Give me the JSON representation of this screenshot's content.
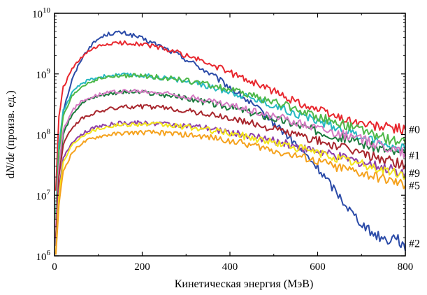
{
  "chart_data": {
    "type": "line",
    "xlabel": "Кинетическая энергия (МэВ)",
    "ylabel_parts": {
      "d1": "d",
      "N": "N",
      "slash": "/d",
      "eps": "ε",
      "rest": " (произв. ед.)"
    },
    "xlim": [
      0,
      800
    ],
    "ylim": [
      1000000,
      10000000000
    ],
    "yscale": "log",
    "x_ticks": [
      0,
      200,
      400,
      600,
      800
    ],
    "x_tick_labels": [
      "0",
      "200",
      "400",
      "600",
      "800"
    ],
    "y_ticks": [
      {
        "value": 1000000,
        "base": "10",
        "exp": "6"
      },
      {
        "value": 10000000,
        "base": "10",
        "exp": "7"
      },
      {
        "value": 100000000,
        "base": "10",
        "exp": "8"
      },
      {
        "value": 1000000000,
        "base": "10",
        "exp": "9"
      },
      {
        "value": 10000000000,
        "base": "10",
        "exp": "10"
      }
    ],
    "grid": false,
    "series": [
      {
        "label": "#2",
        "color": "#2b4ba8",
        "points": [
          [
            3,
            1500000.0
          ],
          [
            10,
            60000000.0
          ],
          [
            20,
            250000000.0
          ],
          [
            40,
            800000000.0
          ],
          [
            60,
            1700000000.0
          ],
          [
            80,
            2800000000.0
          ],
          [
            100,
            3800000000.0
          ],
          [
            120,
            4500000000.0
          ],
          [
            140,
            4800000000.0
          ],
          [
            160,
            4700000000.0
          ],
          [
            180,
            4300000000.0
          ],
          [
            200,
            3800000000.0
          ],
          [
            240,
            2900000000.0
          ],
          [
            280,
            2100000000.0
          ],
          [
            320,
            1450000000.0
          ],
          [
            360,
            950000000.0
          ],
          [
            400,
            600000000.0
          ],
          [
            440,
            360000000.0
          ],
          [
            480,
            210000000.0
          ],
          [
            520,
            115000000.0
          ],
          [
            560,
            58000000.0
          ],
          [
            600,
            28000000.0
          ],
          [
            640,
            12000000.0
          ],
          [
            680,
            5000000.0
          ],
          [
            720,
            2500000.0
          ],
          [
            760,
            1800000.0
          ],
          [
            780,
            2200000.0
          ],
          [
            800,
            1200000.0
          ]
        ]
      },
      {
        "label": "",
        "color": "#e8262d",
        "points": [
          [
            3,
            12000000.0
          ],
          [
            10,
            200000000.0
          ],
          [
            20,
            600000000.0
          ],
          [
            40,
            1200000000.0
          ],
          [
            60,
            1800000000.0
          ],
          [
            80,
            2400000000.0
          ],
          [
            100,
            2800000000.0
          ],
          [
            120,
            3100000000.0
          ],
          [
            140,
            3200000000.0
          ],
          [
            160,
            3250000000.0
          ],
          [
            180,
            3200000000.0
          ],
          [
            200,
            3100000000.0
          ],
          [
            240,
            2700000000.0
          ],
          [
            280,
            2250000000.0
          ],
          [
            320,
            1800000000.0
          ],
          [
            360,
            1400000000.0
          ],
          [
            400,
            1050000000.0
          ],
          [
            440,
            800000000.0
          ],
          [
            480,
            600000000.0
          ],
          [
            520,
            440000000.0
          ],
          [
            560,
            330000000.0
          ],
          [
            600,
            260000000.0
          ],
          [
            640,
            200000000.0
          ],
          [
            680,
            165000000.0
          ],
          [
            720,
            140000000.0
          ],
          [
            760,
            130000000.0
          ],
          [
            800,
            120000000.0
          ]
        ]
      },
      {
        "label": "#0",
        "color": "#26b8c2",
        "points": [
          [
            3,
            5000000.0
          ],
          [
            10,
            70000000.0
          ],
          [
            20,
            250000000.0
          ],
          [
            40,
            480000000.0
          ],
          [
            60,
            680000000.0
          ],
          [
            80,
            800000000.0
          ],
          [
            100,
            880000000.0
          ],
          [
            120,
            930000000.0
          ],
          [
            140,
            950000000.0
          ],
          [
            160,
            960000000.0
          ],
          [
            180,
            960000000.0
          ],
          [
            200,
            940000000.0
          ],
          [
            240,
            880000000.0
          ],
          [
            280,
            800000000.0
          ],
          [
            320,
            700000000.0
          ],
          [
            360,
            600000000.0
          ],
          [
            400,
            510000000.0
          ],
          [
            440,
            420000000.0
          ],
          [
            480,
            340000000.0
          ],
          [
            520,
            270000000.0
          ],
          [
            560,
            210000000.0
          ],
          [
            600,
            170000000.0
          ],
          [
            640,
            135000000.0
          ],
          [
            680,
            105000000.0
          ],
          [
            720,
            85000000.0
          ],
          [
            760,
            68000000.0
          ],
          [
            800,
            55000000.0
          ]
        ]
      },
      {
        "label": "",
        "color": "#4db848",
        "points": [
          [
            3,
            4000000.0
          ],
          [
            10,
            50000000.0
          ],
          [
            20,
            200000000.0
          ],
          [
            40,
            420000000.0
          ],
          [
            60,
            600000000.0
          ],
          [
            80,
            730000000.0
          ],
          [
            100,
            820000000.0
          ],
          [
            120,
            880000000.0
          ],
          [
            140,
            910000000.0
          ],
          [
            160,
            930000000.0
          ],
          [
            180,
            930000000.0
          ],
          [
            200,
            920000000.0
          ],
          [
            240,
            880000000.0
          ],
          [
            280,
            820000000.0
          ],
          [
            320,
            730000000.0
          ],
          [
            360,
            640000000.0
          ],
          [
            400,
            550000000.0
          ],
          [
            440,
            460000000.0
          ],
          [
            480,
            380000000.0
          ],
          [
            520,
            310000000.0
          ],
          [
            560,
            250000000.0
          ],
          [
            600,
            200000000.0
          ],
          [
            640,
            160000000.0
          ],
          [
            680,
            130000000.0
          ],
          [
            720,
            105000000.0
          ],
          [
            760,
            85000000.0
          ],
          [
            800,
            70000000.0
          ]
        ]
      },
      {
        "label": "#1",
        "color": "#1a7a3c",
        "points": [
          [
            3,
            2000000.0
          ],
          [
            10,
            25000000.0
          ],
          [
            20,
            100000000.0
          ],
          [
            40,
            220000000.0
          ],
          [
            60,
            320000000.0
          ],
          [
            80,
            390000000.0
          ],
          [
            100,
            440000000.0
          ],
          [
            120,
            470000000.0
          ],
          [
            140,
            490000000.0
          ],
          [
            160,
            500000000.0
          ],
          [
            180,
            500000000.0
          ],
          [
            200,
            490000000.0
          ],
          [
            240,
            460000000.0
          ],
          [
            280,
            420000000.0
          ],
          [
            320,
            370000000.0
          ],
          [
            360,
            320000000.0
          ],
          [
            400,
            280000000.0
          ],
          [
            440,
            240000000.0
          ],
          [
            480,
            200000000.0
          ],
          [
            520,
            170000000.0
          ],
          [
            560,
            140000000.0
          ],
          [
            600,
            115000000.0
          ],
          [
            640,
            95000000.0
          ],
          [
            680,
            80000000.0
          ],
          [
            720,
            65000000.0
          ],
          [
            760,
            55000000.0
          ],
          [
            800,
            45000000.0
          ]
        ]
      },
      {
        "label": "",
        "color": "#d47ac2",
        "points": [
          [
            3,
            3000000.0
          ],
          [
            10,
            30000000.0
          ],
          [
            20,
            120000000.0
          ],
          [
            40,
            250000000.0
          ],
          [
            60,
            340000000.0
          ],
          [
            80,
            410000000.0
          ],
          [
            100,
            460000000.0
          ],
          [
            120,
            490000000.0
          ],
          [
            140,
            510000000.0
          ],
          [
            160,
            520000000.0
          ],
          [
            180,
            520000000.0
          ],
          [
            200,
            510000000.0
          ],
          [
            240,
            490000000.0
          ],
          [
            280,
            450000000.0
          ],
          [
            320,
            400000000.0
          ],
          [
            360,
            350000000.0
          ],
          [
            400,
            300000000.0
          ],
          [
            440,
            260000000.0
          ],
          [
            480,
            220000000.0
          ],
          [
            520,
            185000000.0
          ],
          [
            560,
            155000000.0
          ],
          [
            600,
            130000000.0
          ],
          [
            640,
            110000000.0
          ],
          [
            680,
            90000000.0
          ],
          [
            720,
            75000000.0
          ],
          [
            760,
            62000000.0
          ],
          [
            800,
            50000000.0
          ]
        ]
      },
      {
        "label": "",
        "color": "#a8262d",
        "points": [
          [
            3,
            2000000.0
          ],
          [
            10,
            20000000.0
          ],
          [
            20,
            70000000.0
          ],
          [
            40,
            130000000.0
          ],
          [
            60,
            180000000.0
          ],
          [
            80,
            210000000.0
          ],
          [
            100,
            240000000.0
          ],
          [
            120,
            260000000.0
          ],
          [
            140,
            275000000.0
          ],
          [
            160,
            285000000.0
          ],
          [
            180,
            290000000.0
          ],
          [
            200,
            290000000.0
          ],
          [
            240,
            280000000.0
          ],
          [
            280,
            260000000.0
          ],
          [
            320,
            235000000.0
          ],
          [
            360,
            210000000.0
          ],
          [
            400,
            185000000.0
          ],
          [
            440,
            160000000.0
          ],
          [
            480,
            135000000.0
          ],
          [
            520,
            115000000.0
          ],
          [
            560,
            95000000.0
          ],
          [
            600,
            80000000.0
          ],
          [
            640,
            65000000.0
          ],
          [
            680,
            55000000.0
          ],
          [
            720,
            45000000.0
          ],
          [
            760,
            38000000.0
          ],
          [
            800,
            32000000.0
          ]
        ]
      },
      {
        "label": "#9",
        "color": "#8e3fa8",
        "points": [
          [
            3,
            1500000.0
          ],
          [
            10,
            12000000.0
          ],
          [
            20,
            40000000.0
          ],
          [
            40,
            75000000.0
          ],
          [
            60,
            100000000.0
          ],
          [
            80,
            120000000.0
          ],
          [
            100,
            135000000.0
          ],
          [
            120,
            145000000.0
          ],
          [
            140,
            152000000.0
          ],
          [
            160,
            155000000.0
          ],
          [
            180,
            157000000.0
          ],
          [
            200,
            157000000.0
          ],
          [
            240,
            153000000.0
          ],
          [
            280,
            145000000.0
          ],
          [
            320,
            135000000.0
          ],
          [
            360,
            123000000.0
          ],
          [
            400,
            110000000.0
          ],
          [
            440,
            97000000.0
          ],
          [
            480,
            85000000.0
          ],
          [
            520,
            73000000.0
          ],
          [
            560,
            62000000.0
          ],
          [
            600,
            53000000.0
          ],
          [
            640,
            45000000.0
          ],
          [
            680,
            38000000.0
          ],
          [
            720,
            32000000.0
          ],
          [
            760,
            27000000.0
          ],
          [
            800,
            23000000.0
          ]
        ]
      },
      {
        "label": "",
        "color": "#f2e51c",
        "points": [
          [
            3,
            1200000.0
          ],
          [
            10,
            10000000.0
          ],
          [
            20,
            35000000.0
          ],
          [
            40,
            68000000.0
          ],
          [
            60,
            93000000.0
          ],
          [
            80,
            112000000.0
          ],
          [
            100,
            125000000.0
          ],
          [
            120,
            135000000.0
          ],
          [
            140,
            142000000.0
          ],
          [
            160,
            146000000.0
          ],
          [
            180,
            148000000.0
          ],
          [
            200,
            148000000.0
          ],
          [
            240,
            145000000.0
          ],
          [
            280,
            138000000.0
          ],
          [
            320,
            128000000.0
          ],
          [
            360,
            117000000.0
          ],
          [
            400,
            105000000.0
          ],
          [
            440,
            92000000.0
          ],
          [
            480,
            80000000.0
          ],
          [
            520,
            69000000.0
          ],
          [
            560,
            59000000.0
          ],
          [
            600,
            50000000.0
          ],
          [
            640,
            42000000.0
          ],
          [
            680,
            35000000.0
          ],
          [
            720,
            29500000.0
          ],
          [
            760,
            25000000.0
          ],
          [
            800,
            21000000.0
          ]
        ]
      },
      {
        "label": "#5",
        "color": "#f5a21d",
        "points": [
          [
            3,
            1000000.0
          ],
          [
            10,
            7000000.0
          ],
          [
            20,
            25000000.0
          ],
          [
            40,
            50000000.0
          ],
          [
            60,
            70000000.0
          ],
          [
            80,
            83000000.0
          ],
          [
            100,
            92000000.0
          ],
          [
            120,
            98000000.0
          ],
          [
            140,
            102000000.0
          ],
          [
            160,
            105000000.0
          ],
          [
            180,
            107000000.0
          ],
          [
            200,
            108000000.0
          ],
          [
            240,
            107000000.0
          ],
          [
            280,
            103000000.0
          ],
          [
            320,
            96000000.0
          ],
          [
            360,
            88000000.0
          ],
          [
            400,
            80000000.0
          ],
          [
            440,
            70000000.0
          ],
          [
            480,
            60000000.0
          ],
          [
            520,
            51000000.0
          ],
          [
            560,
            43000000.0
          ],
          [
            600,
            36000000.0
          ],
          [
            640,
            30000000.0
          ],
          [
            680,
            25000000.0
          ],
          [
            720,
            21000000.0
          ],
          [
            760,
            17500000.0
          ],
          [
            800,
            14500000.0
          ]
        ]
      }
    ]
  }
}
